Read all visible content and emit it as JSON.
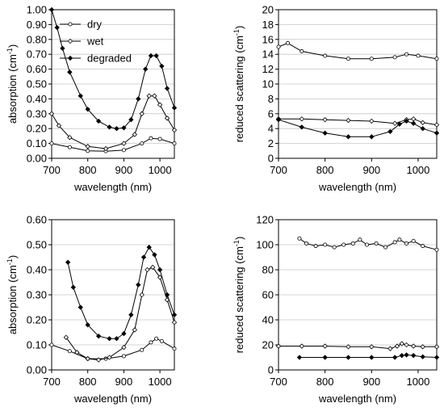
{
  "chart_data": [
    {
      "type": "line",
      "xlabel": "wavelength (nm)",
      "ylabel_main": "absorption (cm",
      "ylabel_sup": "-1",
      "ylabel_end": ")",
      "xlim": [
        700,
        1040
      ],
      "ylim": [
        0,
        1.0
      ],
      "xticks": [
        "700",
        "800",
        "900",
        "1000"
      ],
      "yticks": [
        "0.00",
        "0.10",
        "0.20",
        "0.30",
        "0.40",
        "0.50",
        "0.60",
        "0.70",
        "0.80",
        "0.90",
        "1.00"
      ],
      "grid": true,
      "legend": "top-left",
      "series": [
        {
          "name": "dry",
          "marker": "open-circle",
          "x": [
            700,
            750,
            800,
            850,
            900,
            950,
            975,
            1000,
            1040
          ],
          "y": [
            0.1,
            0.075,
            0.05,
            0.048,
            0.055,
            0.1,
            0.135,
            0.13,
            0.1
          ]
        },
        {
          "name": "wet",
          "marker": "open-diamond",
          "x": [
            700,
            720,
            750,
            800,
            850,
            900,
            930,
            950,
            970,
            985,
            1000,
            1020,
            1040
          ],
          "y": [
            0.3,
            0.22,
            0.14,
            0.08,
            0.065,
            0.1,
            0.16,
            0.3,
            0.42,
            0.42,
            0.36,
            0.27,
            0.19
          ]
        },
        {
          "name": "degraded",
          "marker": "filled-diamond",
          "x": [
            700,
            715,
            730,
            750,
            780,
            800,
            830,
            860,
            880,
            900,
            920,
            940,
            960,
            975,
            990,
            1005,
            1020,
            1040
          ],
          "y": [
            1.0,
            0.88,
            0.74,
            0.58,
            0.42,
            0.33,
            0.25,
            0.21,
            0.2,
            0.205,
            0.26,
            0.4,
            0.6,
            0.69,
            0.69,
            0.62,
            0.47,
            0.34
          ]
        }
      ]
    },
    {
      "type": "line",
      "xlabel": "wavelength (nm)",
      "ylabel_main": "reduced scattering (cm",
      "ylabel_sup": "-1",
      "ylabel_end": ")",
      "xlim": [
        700,
        1040
      ],
      "ylim": [
        0,
        20
      ],
      "xticks": [
        "700",
        "800",
        "900",
        "1000"
      ],
      "yticks": [
        "0",
        "2",
        "4",
        "6",
        "8",
        "10",
        "12",
        "14",
        "16",
        "18",
        "20"
      ],
      "grid": true,
      "series": [
        {
          "name": "dry",
          "marker": "open-circle",
          "x": [
            700,
            720,
            750,
            800,
            850,
            900,
            950,
            975,
            1000,
            1040
          ],
          "y": [
            15.0,
            15.5,
            14.4,
            13.8,
            13.4,
            13.4,
            13.6,
            14.0,
            13.8,
            13.4
          ]
        },
        {
          "name": "wet",
          "marker": "open-diamond",
          "x": [
            700,
            750,
            800,
            850,
            900,
            950,
            975,
            990,
            1010,
            1040
          ],
          "y": [
            5.3,
            5.3,
            5.2,
            5.1,
            5.0,
            4.7,
            5.2,
            5.3,
            4.8,
            4.5
          ]
        },
        {
          "name": "degraded",
          "marker": "filled-diamond",
          "x": [
            700,
            750,
            800,
            850,
            900,
            940,
            960,
            975,
            990,
            1010,
            1040
          ],
          "y": [
            5.2,
            4.2,
            3.4,
            2.9,
            2.9,
            3.6,
            4.6,
            5.0,
            4.7,
            4.0,
            3.4
          ]
        }
      ]
    },
    {
      "type": "line",
      "xlabel": "wavelength (nm)",
      "ylabel_main": "absorption (cm",
      "ylabel_sup": "-1",
      "ylabel_end": ")",
      "xlim": [
        700,
        1040
      ],
      "ylim": [
        0,
        0.6
      ],
      "xticks": [
        "700",
        "800",
        "900",
        "1000"
      ],
      "yticks": [
        "0.00",
        "0.10",
        "0.20",
        "0.30",
        "0.40",
        "0.50",
        "0.60"
      ],
      "grid": true,
      "series": [
        {
          "name": "dry",
          "marker": "open-circle",
          "x": [
            700,
            750,
            800,
            850,
            900,
            950,
            975,
            990,
            1005,
            1040
          ],
          "y": [
            0.1,
            0.075,
            0.045,
            0.045,
            0.055,
            0.08,
            0.11,
            0.125,
            0.115,
            0.085
          ]
        },
        {
          "name": "wet",
          "marker": "open-diamond",
          "x": [
            740,
            770,
            800,
            830,
            860,
            900,
            930,
            950,
            965,
            980,
            1000,
            1020,
            1040
          ],
          "y": [
            0.13,
            0.07,
            0.045,
            0.04,
            0.05,
            0.09,
            0.16,
            0.3,
            0.4,
            0.41,
            0.37,
            0.28,
            0.19
          ]
        },
        {
          "name": "degraded",
          "marker": "filled-diamond",
          "x": [
            745,
            760,
            780,
            800,
            830,
            860,
            880,
            900,
            920,
            940,
            955,
            970,
            985,
            1000,
            1020,
            1040
          ],
          "y": [
            0.43,
            0.33,
            0.25,
            0.18,
            0.135,
            0.125,
            0.125,
            0.145,
            0.22,
            0.34,
            0.45,
            0.49,
            0.46,
            0.4,
            0.3,
            0.22
          ]
        }
      ]
    },
    {
      "type": "line",
      "xlabel": "wavelength (nm)",
      "ylabel_main": "reduced scattering (cm",
      "ylabel_sup": "-1",
      "ylabel_end": ")",
      "xlim": [
        700,
        1040
      ],
      "ylim": [
        0,
        120
      ],
      "xticks": [
        "700",
        "800",
        "900",
        "1000"
      ],
      "yticks": [
        "0",
        "20",
        "40",
        "60",
        "80",
        "100",
        "120"
      ],
      "grid": true,
      "series": [
        {
          "name": "dry",
          "marker": "open-circle",
          "x": [
            745,
            760,
            780,
            800,
            820,
            840,
            860,
            875,
            890,
            910,
            930,
            950,
            960,
            975,
            990,
            1010,
            1040
          ],
          "y": [
            105,
            101,
            99,
            100,
            98,
            100,
            101,
            104,
            100,
            101,
            98,
            102,
            104,
            101,
            103,
            99,
            96
          ]
        },
        {
          "name": "wet",
          "marker": "open-diamond",
          "x": [
            700,
            750,
            800,
            850,
            900,
            940,
            955,
            965,
            975,
            990,
            1010,
            1040
          ],
          "y": [
            19,
            19,
            19,
            18.5,
            18.5,
            17,
            19,
            21,
            20,
            19,
            18.5,
            18.5
          ]
        },
        {
          "name": "degraded",
          "marker": "filled-diamond",
          "x": [
            745,
            800,
            850,
            900,
            950,
            965,
            975,
            990,
            1010,
            1040
          ],
          "y": [
            10,
            10,
            10,
            10,
            10,
            11.5,
            12,
            11.5,
            10.5,
            10
          ]
        }
      ]
    }
  ]
}
